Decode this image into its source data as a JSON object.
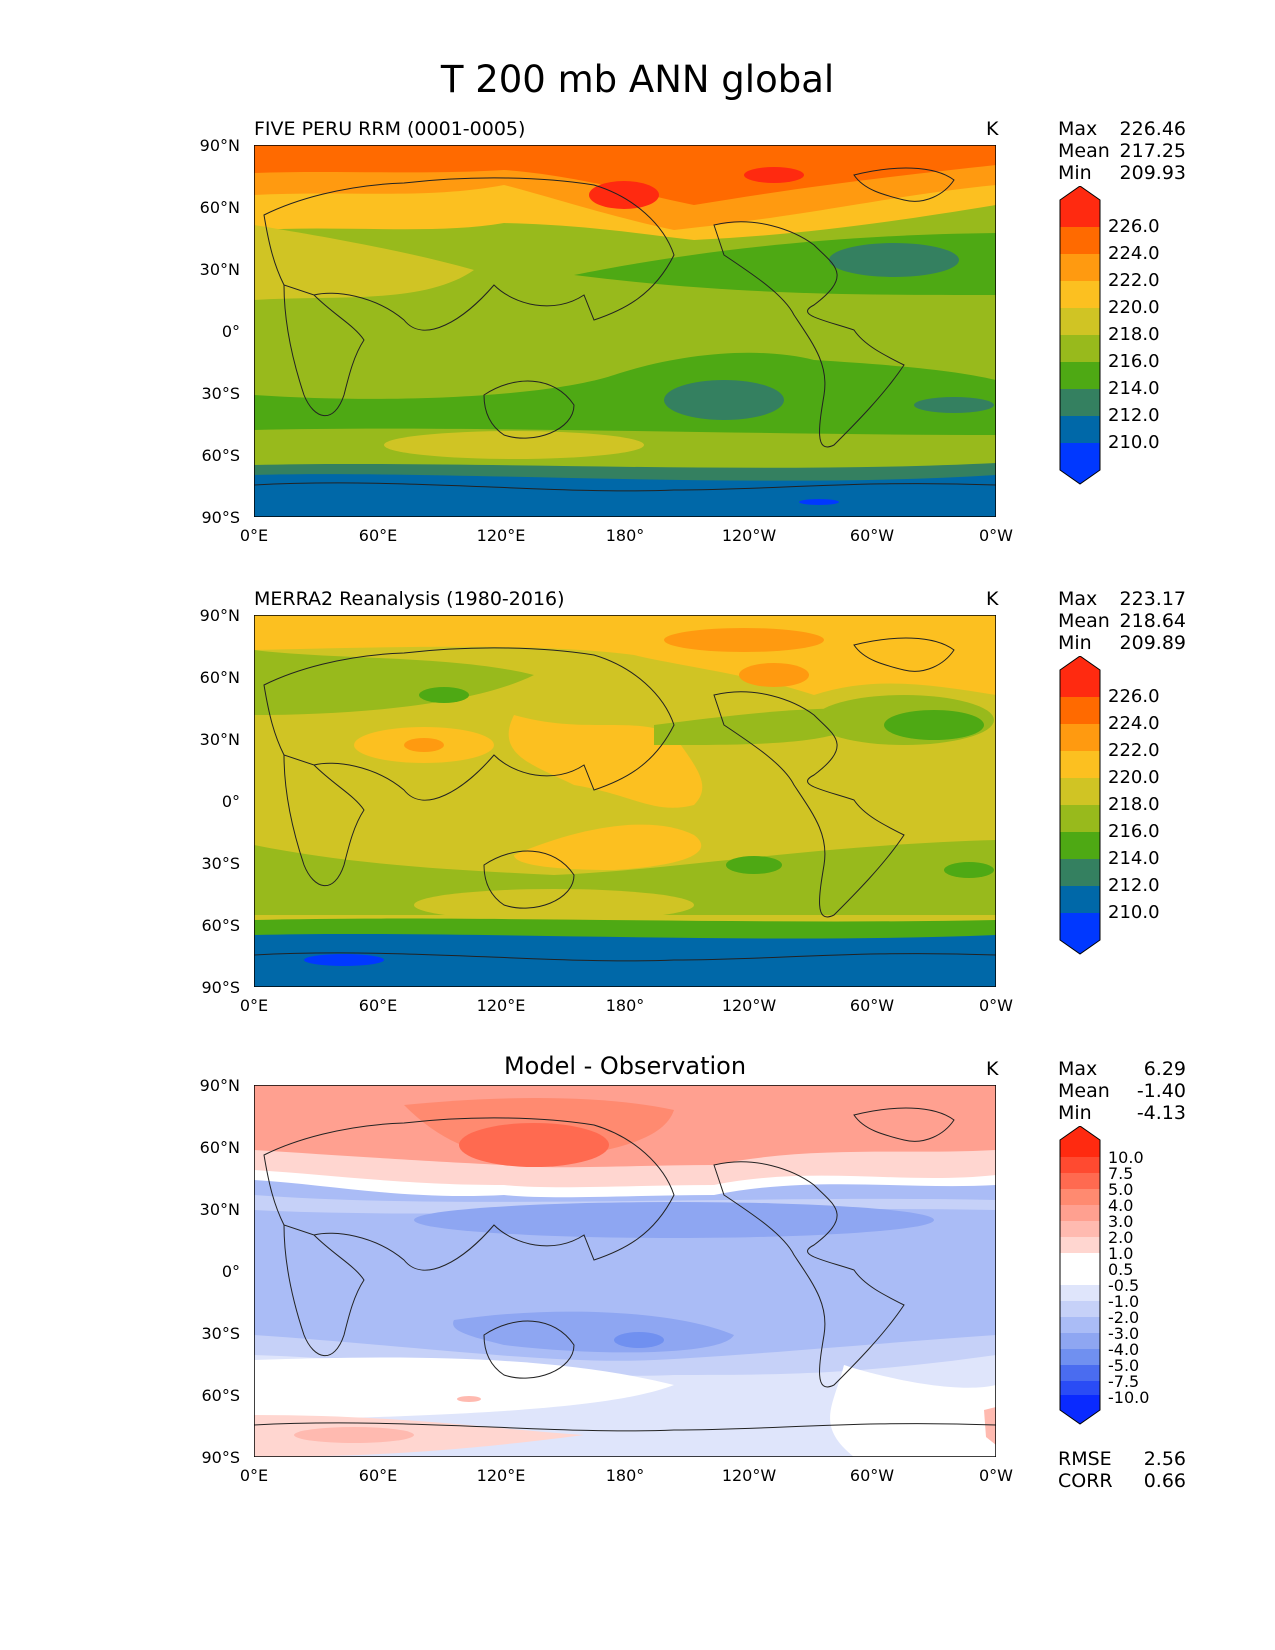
{
  "figure_title": "T 200 mb ANN global",
  "lat_labels": [
    "90°N",
    "60°N",
    "30°N",
    "0°",
    "30°S",
    "60°S",
    "90°S"
  ],
  "lon_labels": [
    "0°E",
    "60°E",
    "120°E",
    "180°",
    "120°W",
    "60°W",
    "0°W"
  ],
  "panels": [
    {
      "subtitle": "FIVE PERU RRM (0001-0005)",
      "unit": "K",
      "stats": {
        "max_label": "Max",
        "max": "226.46",
        "mean_label": "Mean",
        "mean": "217.25",
        "min_label": "Min",
        "min": "209.93"
      },
      "colorbar_labels": [
        "226.0",
        "224.0",
        "222.0",
        "220.0",
        "218.0",
        "216.0",
        "214.0",
        "212.0",
        "210.0"
      ]
    },
    {
      "subtitle": "MERRA2 Reanalysis (1980-2016)",
      "unit": "K",
      "stats": {
        "max_label": "Max",
        "max": "223.17",
        "mean_label": "Mean",
        "mean": "218.64",
        "min_label": "Min",
        "min": "209.89"
      },
      "colorbar_labels": [
        "226.0",
        "224.0",
        "222.0",
        "220.0",
        "218.0",
        "216.0",
        "214.0",
        "212.0",
        "210.0"
      ]
    },
    {
      "subtitle": "Model - Observation",
      "unit": "K",
      "stats": {
        "max_label": "Max",
        "max": "6.29",
        "mean_label": "Mean",
        "mean": "-1.40",
        "min_label": "Min",
        "min": "-4.13"
      },
      "colorbar_labels": [
        "10.0",
        "7.5",
        "5.0",
        "4.0",
        "3.0",
        "2.0",
        "1.0",
        "0.5",
        "-0.5",
        "-1.0",
        "-2.0",
        "-3.0",
        "-4.0",
        "-5.0",
        "-7.5",
        "-10.0"
      ],
      "rmse_label": "RMSE",
      "rmse": "2.56",
      "corr_label": "CORR",
      "corr": "0.66"
    }
  ],
  "colors": {
    "abs_scale": [
      "#ff2a10",
      "#ff6a00",
      "#ff9a10",
      "#fcc020",
      "#d0c424",
      "#98ba1c",
      "#4ea914",
      "#348060",
      "#0068a8",
      "#0038ff"
    ],
    "diff_scale": [
      "#ff2a10",
      "#ff4a30",
      "#ff6a50",
      "#ff8a70",
      "#ffa090",
      "#ffbab0",
      "#ffd6d0",
      "#ffffff",
      "#ffffff",
      "#dfe5fb",
      "#c6d1f8",
      "#aabcf6",
      "#8ea6f2",
      "#7090f0",
      "#4a6cf0",
      "#2a4cf5",
      "#0a2aff"
    ]
  }
}
